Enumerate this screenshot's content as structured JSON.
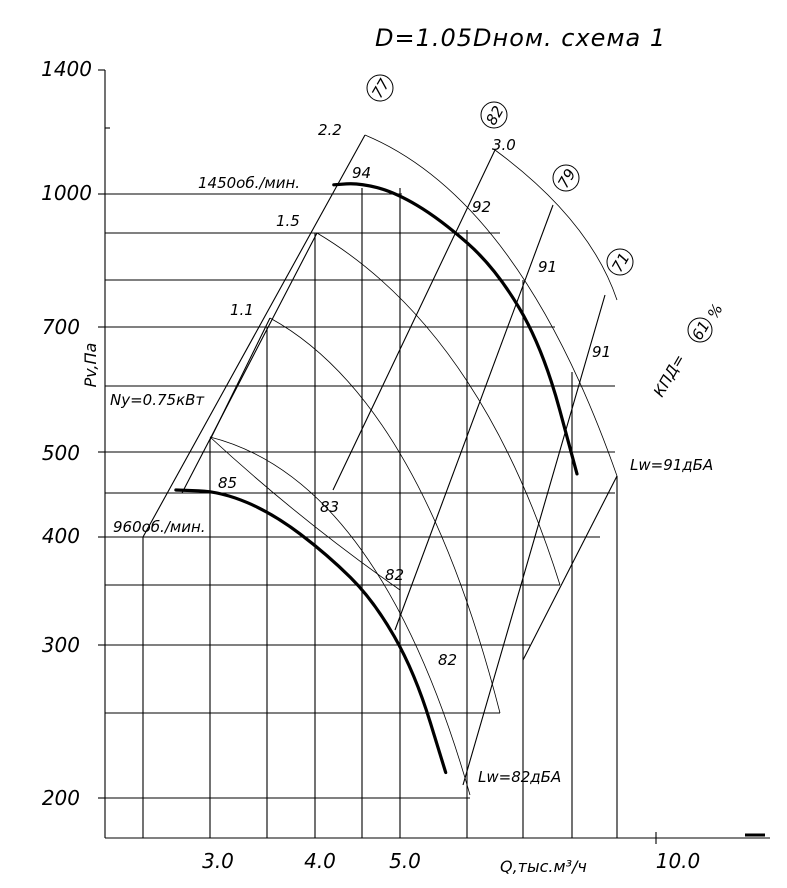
{
  "chart_data": {
    "type": "line",
    "title": "D=1.05Dном. схема 1",
    "ylabel": "Pv,Па",
    "xlabel": "Q,тыс.м³/ч",
    "x_scale": "log",
    "y_scale": "log",
    "x_tick_labels": [
      "3.0",
      "4.0",
      "5.0",
      "10.0"
    ],
    "x_ticks": [
      3.0,
      4.0,
      5.0,
      10.0
    ],
    "y_tick_labels": [
      "1400",
      "1000",
      "700",
      "500",
      "400",
      "300",
      "200"
    ],
    "y_ticks": [
      1400,
      1000,
      700,
      500,
      400,
      300,
      200
    ],
    "speed_labels": [
      "1450об./мин.",
      "960об./мин."
    ],
    "series": [
      {
        "name": "1450об./мин.",
        "x": [
          4.28,
          4.6,
          5.1,
          5.8,
          6.8,
          7.8,
          8.6
        ],
        "y": [
          1025,
          1030,
          1005,
          935,
          820,
          660,
          470
        ]
      },
      {
        "name": "960об./мин.",
        "x": [
          2.72,
          3.1,
          3.6,
          4.2,
          4.8,
          5.4,
          5.9
        ],
        "y": [
          450,
          448,
          422,
          378,
          334,
          275,
          210
        ]
      }
    ],
    "power_labels": [
      "2.2",
      "1.5",
      "1.1",
      "Ny=0.75кВт"
    ],
    "efficiency_labels": [
      "77",
      "82",
      "79",
      "71",
      "61"
    ],
    "efficiency_unit_label": "КПД=",
    "percent_sign": "%",
    "point_labels": [
      "94",
      "92",
      "91",
      "91",
      "85",
      "83",
      "82",
      "82"
    ],
    "sound_labels": [
      "Lw=91дБА",
      "Lw=82дБА"
    ]
  }
}
